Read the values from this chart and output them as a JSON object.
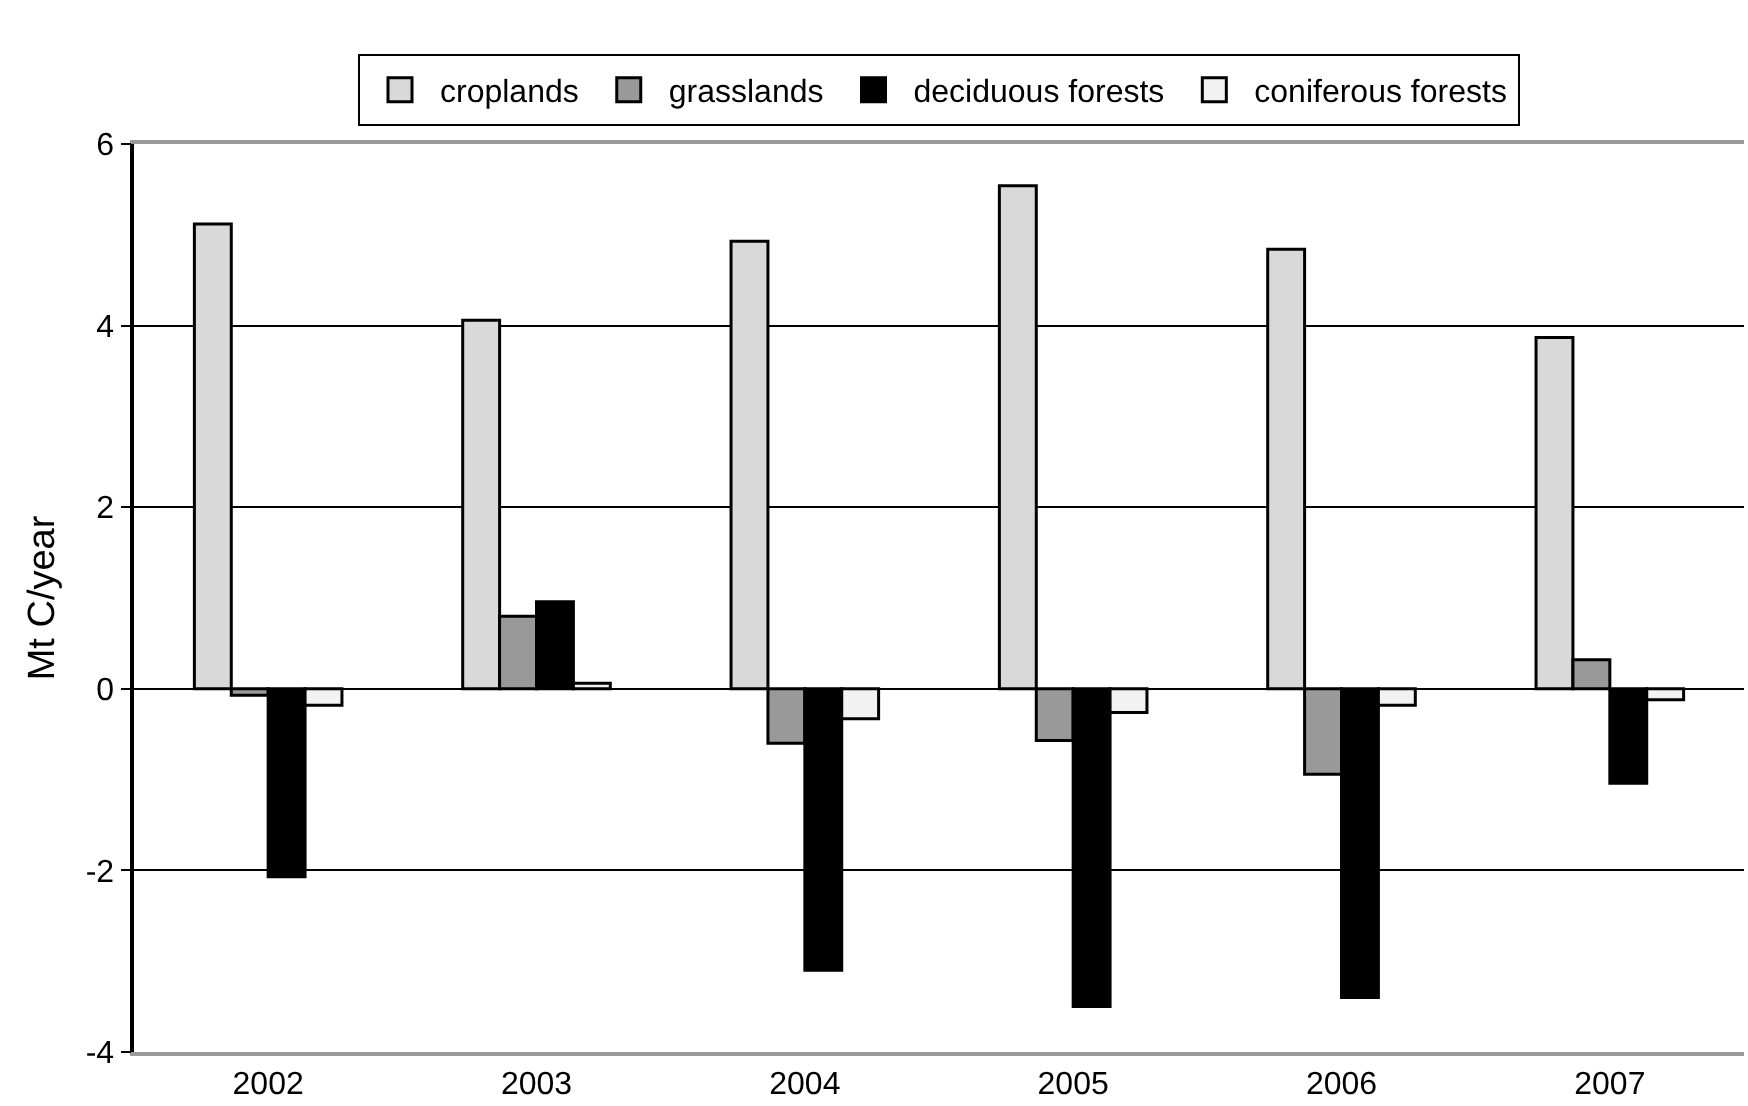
{
  "chart_data": {
    "type": "bar",
    "ylabel": "Mt C/year",
    "categories": [
      "2002",
      "2003",
      "2004",
      "2005",
      "2006",
      "2007"
    ],
    "series": [
      {
        "name": "croplands",
        "color": "#d9d9d9",
        "values": [
          5.12,
          4.06,
          4.93,
          5.54,
          4.84,
          3.87
        ]
      },
      {
        "name": "grasslands",
        "color": "#999999",
        "values": [
          -0.07,
          0.8,
          -0.6,
          -0.57,
          -0.94,
          0.32
        ]
      },
      {
        "name": "deciduous forests",
        "color": "#000000",
        "values": [
          -2.07,
          0.96,
          -3.1,
          -3.5,
          -3.4,
          -1.04
        ]
      },
      {
        "name": "coniferous forests",
        "color": "#f2f2f2",
        "values": [
          -0.18,
          0.06,
          -0.33,
          -0.26,
          -0.18,
          -0.12
        ]
      }
    ],
    "ylim": [
      -4,
      6
    ],
    "yticks": [
      -4,
      -2,
      0,
      2,
      4,
      6
    ],
    "grid": "y",
    "legend": "top"
  }
}
